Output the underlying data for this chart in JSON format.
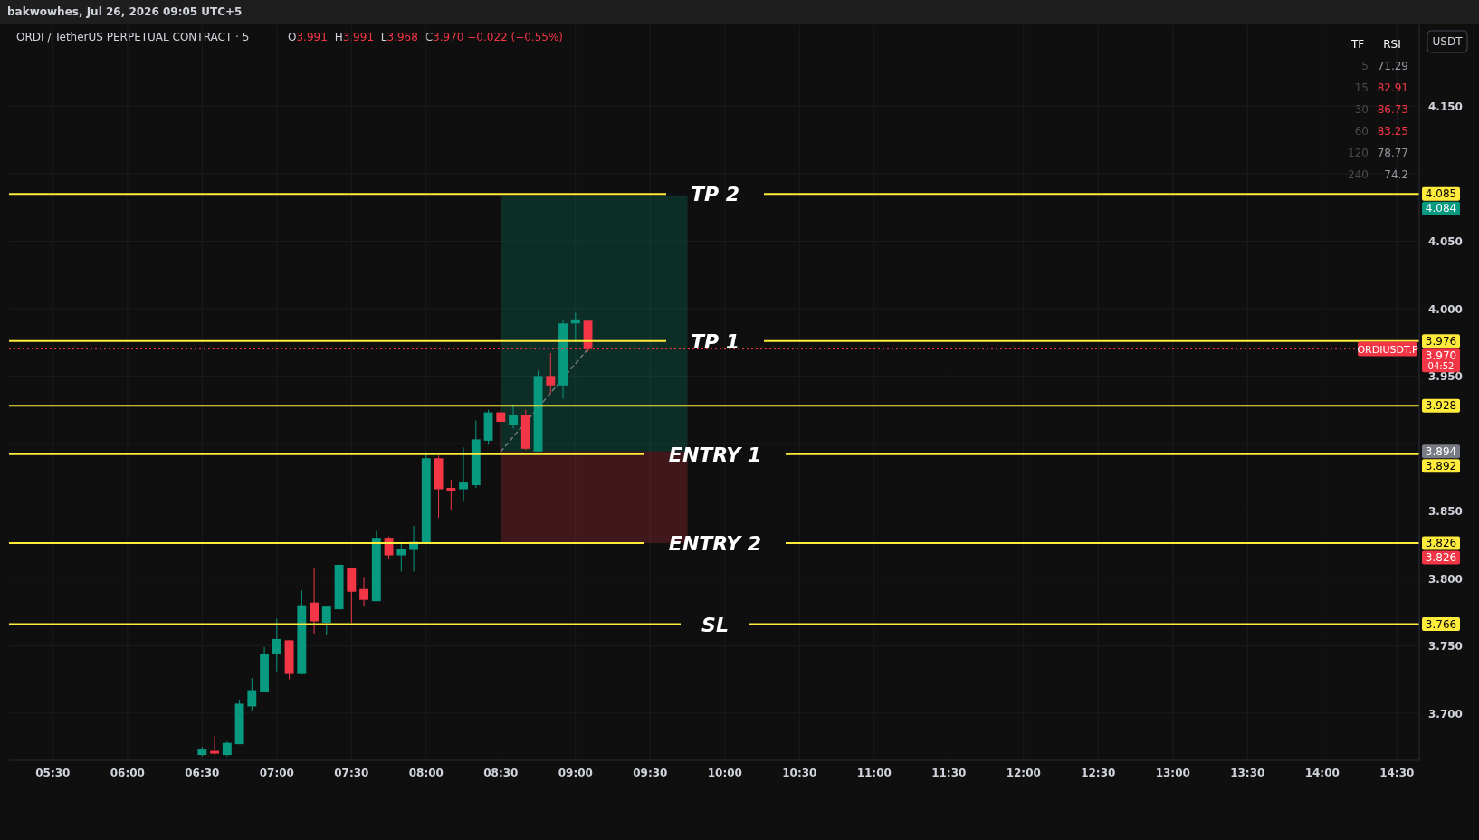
{
  "chart_data": [
    {
      "type": "candlestick",
      "title": "ORDI / TetherUS PERPETUAL CONTRACT · 5",
      "subtitle": "O3.991 H3.991 L3.968 C3.970 −0.022 (−0.55%)",
      "ylabel": "USDT",
      "annotations": [
        "bakwowhes, Jul 26, 2026 09:05 UTC+5",
        "4.085",
        "4.084",
        "3.976",
        "3.970",
        "3.928",
        "3.894",
        "3.892",
        "3.826",
        "3.826",
        "3.766",
        "04:52"
      ],
      "x": [
        6.5,
        6.5833,
        6.6667,
        6.75,
        6.8333,
        6.9167,
        7,
        7.0833,
        7.1667,
        7.25,
        7.3333,
        7.4167,
        7.5,
        7.5833,
        7.6667,
        7.75,
        7.8333,
        7.9167,
        8,
        8.0833,
        8.1667,
        8.25,
        8.3333,
        8.4167,
        8.5,
        8.5833,
        8.6667,
        8.75,
        8.8333,
        8.9167,
        9,
        9.0833
      ],
      "ohlc": [
        [
          3.669,
          3.675,
          3.668,
          3.673
        ],
        [
          3.672,
          3.683,
          3.669,
          3.67
        ],
        [
          3.669,
          3.679,
          3.668,
          3.678
        ],
        [
          3.677,
          3.71,
          3.677,
          3.707
        ],
        [
          3.705,
          3.726,
          3.702,
          3.717
        ],
        [
          3.716,
          3.749,
          3.716,
          3.744
        ],
        [
          3.744,
          3.77,
          3.731,
          3.755
        ],
        [
          3.754,
          3.754,
          3.725,
          3.729
        ],
        [
          3.729,
          3.791,
          3.729,
          3.78
        ],
        [
          3.782,
          3.808,
          3.759,
          3.768
        ],
        [
          3.767,
          3.779,
          3.758,
          3.779
        ],
        [
          3.777,
          3.812,
          3.776,
          3.81
        ],
        [
          3.808,
          3.808,
          3.767,
          3.79
        ],
        [
          3.792,
          3.801,
          3.779,
          3.784
        ],
        [
          3.783,
          3.835,
          3.783,
          3.83
        ],
        [
          3.83,
          3.831,
          3.814,
          3.817
        ],
        [
          3.817,
          3.827,
          3.805,
          3.822
        ],
        [
          3.821,
          3.839,
          3.805,
          3.827
        ],
        [
          3.826,
          3.893,
          3.826,
          3.889
        ],
        [
          3.889,
          3.891,
          3.845,
          3.866
        ],
        [
          3.867,
          3.873,
          3.851,
          3.865
        ],
        [
          3.866,
          3.897,
          3.857,
          3.871
        ],
        [
          3.869,
          3.917,
          3.867,
          3.903
        ],
        [
          3.902,
          3.925,
          3.899,
          3.923
        ],
        [
          3.923,
          3.925,
          3.891,
          3.916
        ],
        [
          3.914,
          3.929,
          3.911,
          3.921
        ],
        [
          3.921,
          3.925,
          3.895,
          3.896
        ],
        [
          3.894,
          3.954,
          3.894,
          3.95
        ],
        [
          3.95,
          3.967,
          3.937,
          3.943
        ],
        [
          3.943,
          3.992,
          3.933,
          3.989
        ],
        [
          3.989,
          3.997,
          3.975,
          3.992
        ],
        [
          3.991,
          3.991,
          3.968,
          3.97
        ]
      ],
      "colors": [
        "#089981",
        "#f23645",
        "#089981",
        "#089981",
        "#089981",
        "#089981",
        "#089981",
        "#f23645",
        "#089981",
        "#f23645",
        "#089981",
        "#089981",
        "#f23645",
        "#f23645",
        "#089981",
        "#f23645",
        "#089981",
        "#089981",
        "#089981",
        "#f23645",
        "#f23645",
        "#089981",
        "#089981",
        "#089981",
        "#f23645",
        "#089981",
        "#f23645",
        "#089981",
        "#f23645",
        "#089981",
        "#089981",
        "#f23645"
      ],
      "series": [
        {
          "type": "line",
          "x": [
            8.5,
            9.0833
          ],
          "values": [
            3.894,
            3.97
          ],
          "color": "#787b86",
          "line_style": "dashed"
        }
      ],
      "xlim": [
        5.207,
        14.65
      ],
      "xticks": [
        {
          "value": 5.5,
          "label": "05:30"
        },
        {
          "value": 6,
          "label": "06:00"
        },
        {
          "value": 6.5,
          "label": "06:30"
        },
        {
          "value": 7,
          "label": "07:00"
        },
        {
          "value": 7.5,
          "label": "07:30"
        },
        {
          "value": 8,
          "label": "08:00"
        },
        {
          "value": 8.5,
          "label": "08:30"
        },
        {
          "value": 9,
          "label": "09:00"
        },
        {
          "value": 9.5,
          "label": "09:30"
        },
        {
          "value": 10,
          "label": "10:00"
        },
        {
          "value": 10.5,
          "label": "10:30"
        },
        {
          "value": 11,
          "label": "11:00"
        },
        {
          "value": 11.5,
          "label": "11:30"
        },
        {
          "value": 12,
          "label": "12:00"
        },
        {
          "value": 12.5,
          "label": "12:30"
        },
        {
          "value": 13,
          "label": "13:00"
        },
        {
          "value": 13.5,
          "label": "13:30"
        },
        {
          "value": 14,
          "label": "14:00"
        },
        {
          "value": 14.5,
          "label": "14:30"
        }
      ],
      "ylim": [
        3.665,
        4.21
      ],
      "yticks": [
        {
          "value": 3.7,
          "label": "3.700"
        },
        {
          "value": 3.75,
          "label": "3.750"
        },
        {
          "value": 3.8,
          "label": "3.800"
        },
        {
          "value": 3.85,
          "label": "3.850"
        },
        {
          "value": 3.9,
          "label": null
        },
        {
          "value": 3.95,
          "label": "3.950"
        },
        {
          "value": 4,
          "label": "4.000"
        },
        {
          "value": 4.05,
          "label": "4.050"
        },
        {
          "value": 4.1,
          "label": null
        },
        {
          "value": 4.15,
          "label": "4.150"
        }
      ],
      "grid": true,
      "ref_lines": [
        {
          "axis": "y",
          "value": 4.085,
          "label": "TP 2",
          "color": "#ffeb3b"
        },
        {
          "axis": "y",
          "value": 3.976,
          "label": "TP 1",
          "color": "#ffeb3b"
        },
        {
          "axis": "y",
          "value": 3.97,
          "label": "ORDIUSDT.P",
          "color": "#f23645",
          "line_style": "dotted"
        },
        {
          "axis": "y",
          "value": 3.928,
          "color": "#ffeb3b"
        },
        {
          "axis": "y",
          "value": 3.892,
          "label": "ENTRY 1",
          "color": "#ffeb3b"
        },
        {
          "axis": "y",
          "value": 3.826,
          "label": "ENTRY 2",
          "color": "#ffeb3b"
        },
        {
          "axis": "y",
          "value": 3.766,
          "label": "SL",
          "color": "#ffeb3b"
        }
      ],
      "bands": [
        {
          "axis": "y",
          "from": 3.894,
          "to": 4.084,
          "color": "#089981"
        },
        {
          "axis": "y",
          "from": 3.826,
          "to": 3.894,
          "color": "#f23645"
        }
      ]
    },
    {
      "type": "other",
      "xlabel": "TF",
      "ylabel": "RSI",
      "categories": [
        "5",
        "15",
        "30",
        "60",
        "120",
        "240"
      ],
      "values": [
        71.29,
        82.91,
        86.73,
        83.25,
        78.77,
        74.2
      ],
      "colors": [
        "#9598a1",
        "#f23645",
        "#f23645",
        "#f23645",
        "#9598a1",
        "#9598a1"
      ],
      "data_labels": true
    }
  ]
}
